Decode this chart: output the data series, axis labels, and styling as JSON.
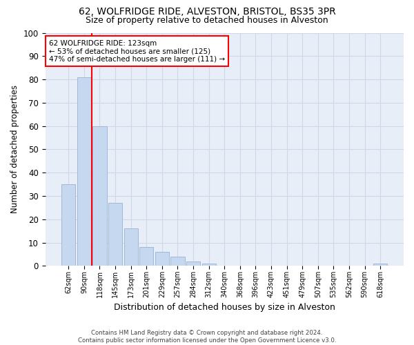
{
  "title1": "62, WOLFRIDGE RIDE, ALVESTON, BRISTOL, BS35 3PR",
  "title2": "Size of property relative to detached houses in Alveston",
  "xlabel": "Distribution of detached houses by size in Alveston",
  "ylabel": "Number of detached properties",
  "bar_labels": [
    "62sqm",
    "90sqm",
    "118sqm",
    "145sqm",
    "173sqm",
    "201sqm",
    "229sqm",
    "257sqm",
    "284sqm",
    "312sqm",
    "340sqm",
    "368sqm",
    "396sqm",
    "423sqm",
    "451sqm",
    "479sqm",
    "507sqm",
    "535sqm",
    "562sqm",
    "590sqm",
    "618sqm"
  ],
  "bar_values": [
    35,
    81,
    60,
    27,
    16,
    8,
    6,
    4,
    2,
    1,
    0,
    0,
    0,
    0,
    0,
    0,
    0,
    0,
    0,
    0,
    1
  ],
  "bar_color": "#c5d8f0",
  "bar_edge_color": "#a0b8d8",
  "grid_color": "#d0d8e8",
  "bg_color": "#e8eef8",
  "annotation_text": "62 WOLFRIDGE RIDE: 123sqm\n← 53% of detached houses are smaller (125)\n47% of semi-detached houses are larger (111) →",
  "annotation_box_color": "white",
  "annotation_box_edge": "red",
  "vline_color": "red",
  "yticks": [
    0,
    10,
    20,
    30,
    40,
    50,
    60,
    70,
    80,
    90,
    100
  ],
  "ylim": [
    0,
    100
  ],
  "footnote": "Contains HM Land Registry data © Crown copyright and database right 2024.\nContains public sector information licensed under the Open Government Licence v3.0."
}
